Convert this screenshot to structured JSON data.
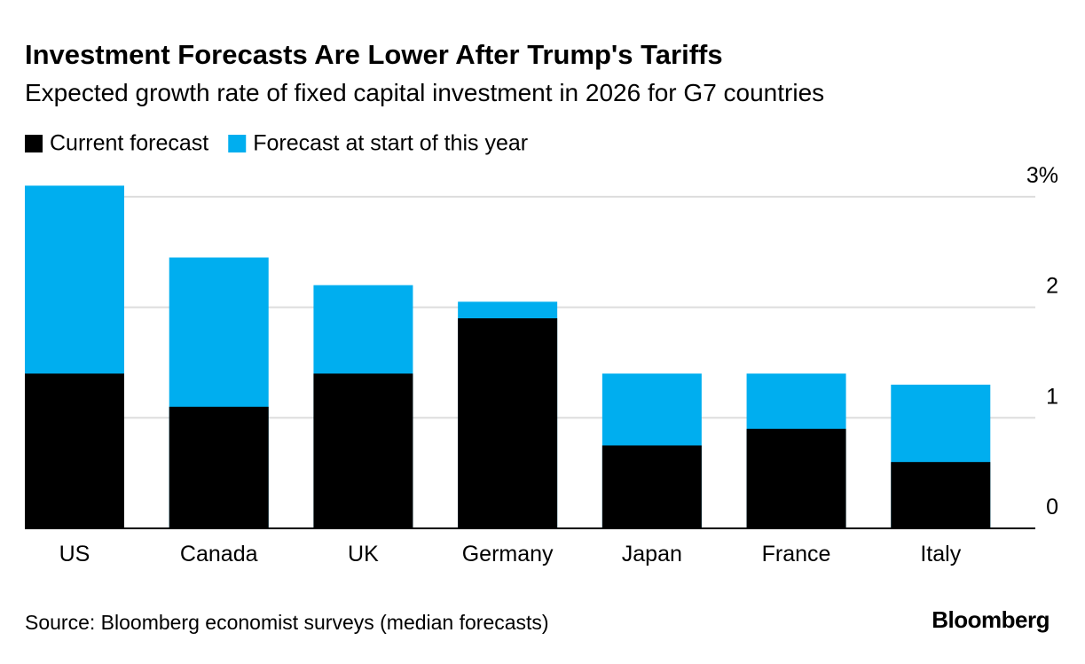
{
  "chart_data": {
    "type": "bar",
    "mode": "overlap",
    "title": "Investment Forecasts Are Lower After Trump's Tariffs",
    "subtitle": "Expected growth rate of fixed capital investment in 2026 for G7 countries",
    "categories": [
      "US",
      "Canada",
      "UK",
      "Germany",
      "Japan",
      "France",
      "Italy"
    ],
    "series": [
      {
        "name": "Current forecast",
        "color": "#000000",
        "values": [
          1.4,
          1.1,
          1.4,
          1.9,
          0.75,
          0.9,
          0.6
        ]
      },
      {
        "name": "Forecast at start of this year",
        "color": "#00aeef",
        "values": [
          3.1,
          2.45,
          2.2,
          2.05,
          1.4,
          1.4,
          1.3
        ]
      }
    ],
    "ylim": [
      0,
      3.1
    ],
    "yticks": [
      0,
      1,
      2,
      {
        "value": 3,
        "label": "3%"
      }
    ],
    "grid": true,
    "legend": "top-left",
    "source": "Source: Bloomberg economist surveys (median forecasts)",
    "brand": "Bloomberg"
  }
}
